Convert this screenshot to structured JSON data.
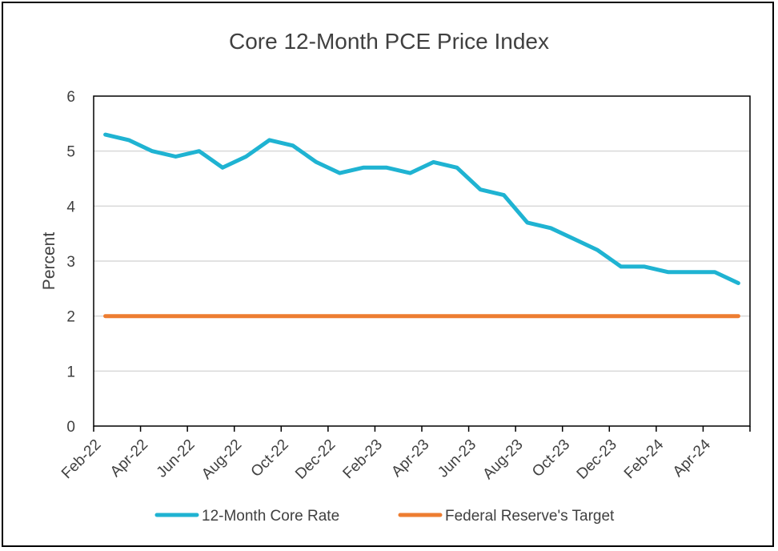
{
  "chart_data": {
    "type": "line",
    "title": "Core 12-Month PCE Price Index",
    "xlabel": "",
    "ylabel": "Percent",
    "ylim": [
      0,
      6
    ],
    "y_ticks": [
      "0",
      "1",
      "2",
      "3",
      "4",
      "5",
      "6"
    ],
    "x_tick_labels": [
      "Feb-22",
      "Apr-22",
      "Jun-22",
      "Aug-22",
      "Oct-22",
      "Dec-22",
      "Feb-23",
      "Apr-23",
      "Jun-23",
      "Aug-23",
      "Oct-23",
      "Dec-23",
      "Feb-24",
      "Apr-24"
    ],
    "x": [
      "Feb-22",
      "Mar-22",
      "Apr-22",
      "May-22",
      "Jun-22",
      "Jul-22",
      "Aug-22",
      "Sep-22",
      "Oct-22",
      "Nov-22",
      "Dec-22",
      "Jan-23",
      "Feb-23",
      "Mar-23",
      "Apr-23",
      "May-23",
      "Jun-23",
      "Jul-23",
      "Aug-23",
      "Sep-23",
      "Oct-23",
      "Nov-23",
      "Dec-23",
      "Jan-24",
      "Feb-24",
      "Mar-24",
      "Apr-24",
      "May-24"
    ],
    "grid": true,
    "legend_position": "bottom",
    "series": [
      {
        "name": "12-Month Core Rate",
        "color": "#1FB3D2",
        "values": [
          5.3,
          5.2,
          5.0,
          4.9,
          5.0,
          4.7,
          4.9,
          5.2,
          5.1,
          4.8,
          4.6,
          4.7,
          4.7,
          4.6,
          4.8,
          4.7,
          4.3,
          4.2,
          3.7,
          3.6,
          3.4,
          3.2,
          2.9,
          2.9,
          2.8,
          2.8,
          2.8,
          2.6
        ]
      },
      {
        "name": "Federal Reserve's Target",
        "color": "#ED7D31",
        "values": [
          2,
          2,
          2,
          2,
          2,
          2,
          2,
          2,
          2,
          2,
          2,
          2,
          2,
          2,
          2,
          2,
          2,
          2,
          2,
          2,
          2,
          2,
          2,
          2,
          2,
          2,
          2,
          2
        ]
      }
    ]
  }
}
